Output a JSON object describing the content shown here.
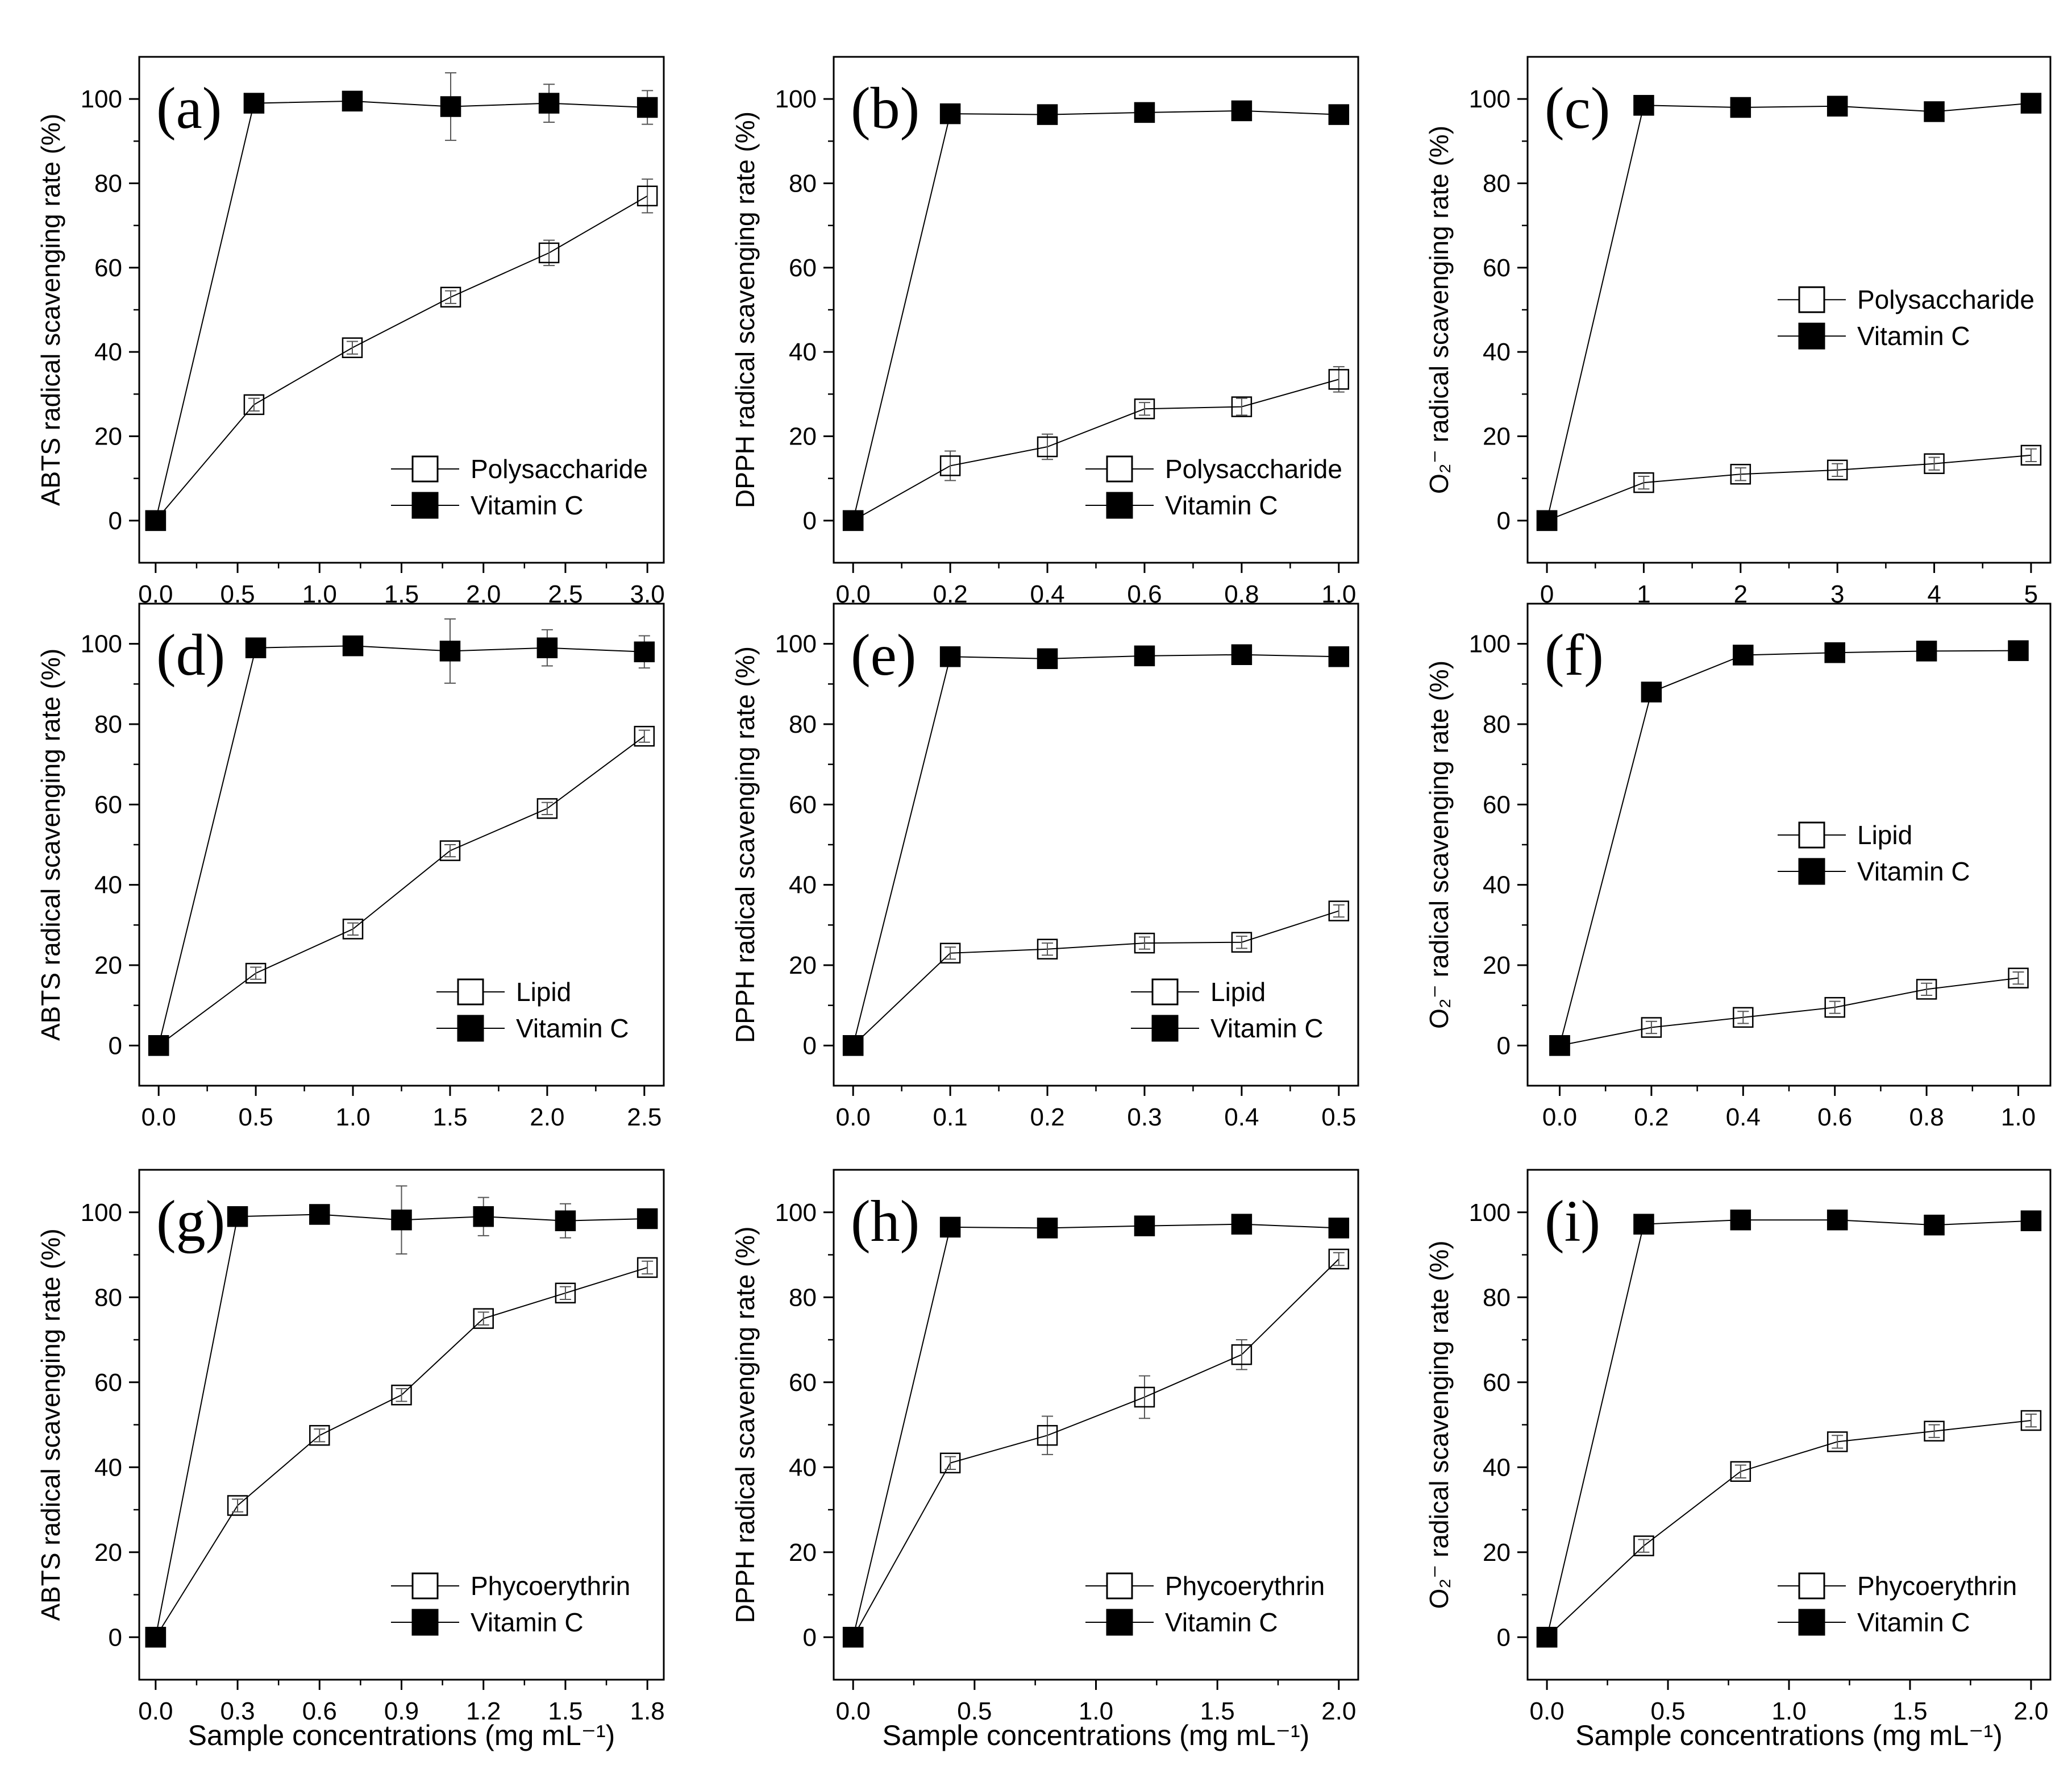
{
  "figure_xlabel": "Sample concentrations (mg mL⁻¹)",
  "chart_data": [
    {
      "id": "a",
      "type": "line",
      "panel_label": "(a)",
      "ylabel": "ABTS radical scavenging rate (%)",
      "xlim": [
        -0.1,
        3.1
      ],
      "ylim": [
        -10,
        110
      ],
      "xticks": [
        0,
        0.5,
        1,
        1.5,
        2,
        2.5,
        3
      ],
      "xtick_labels": [
        "0.0",
        "0.5",
        "1.0",
        "1.5",
        "2.0",
        "2.5",
        "3.0"
      ],
      "yticks": [
        0,
        20,
        40,
        60,
        80,
        100
      ],
      "ytick_labels": [
        "0",
        "20",
        "40",
        "60",
        "80",
        "100"
      ],
      "legend_position": "bottom-right",
      "series": [
        {
          "name": "Polysaccharide",
          "marker": "open-square",
          "x": [
            0,
            0.6,
            1.2,
            1.8,
            2.4,
            3.0
          ],
          "y": [
            0,
            27.5,
            41,
            53,
            63.5,
            77
          ],
          "err": [
            0,
            1.5,
            1.5,
            1.5,
            3,
            4
          ]
        },
        {
          "name": "Vitamin C",
          "marker": "filled-square",
          "x": [
            0,
            0.6,
            1.2,
            1.8,
            2.4,
            3.0
          ],
          "y": [
            0,
            99,
            99.5,
            98.2,
            99,
            98
          ],
          "err": [
            0,
            0.5,
            0.5,
            8,
            4.5,
            4
          ]
        }
      ]
    },
    {
      "id": "b",
      "type": "line",
      "panel_label": "(b)",
      "ylabel": "DPPH radical scavenging rate (%)",
      "xlim": [
        -0.04,
        1.04
      ],
      "ylim": [
        -10,
        110
      ],
      "xticks": [
        0,
        0.2,
        0.4,
        0.6,
        0.8,
        1.0
      ],
      "xtick_labels": [
        "0.0",
        "0.2",
        "0.4",
        "0.6",
        "0.8",
        "1.0"
      ],
      "yticks": [
        0,
        20,
        40,
        60,
        80,
        100
      ],
      "ytick_labels": [
        "0",
        "20",
        "40",
        "60",
        "80",
        "100"
      ],
      "legend_position": "bottom-right",
      "series": [
        {
          "name": "Polysaccharide",
          "marker": "open-square",
          "x": [
            0,
            0.2,
            0.4,
            0.6,
            0.8,
            1.0
          ],
          "y": [
            0,
            13,
            17.5,
            26.5,
            27,
            33.5
          ],
          "err": [
            0,
            3.5,
            3,
            1.5,
            2,
            3
          ]
        },
        {
          "name": "Vitamin C",
          "marker": "filled-square",
          "x": [
            0,
            0.2,
            0.4,
            0.6,
            0.8,
            1.0
          ],
          "y": [
            0,
            96.5,
            96.3,
            96.8,
            97.2,
            96.3
          ],
          "err": [
            0,
            0.5,
            0.5,
            0.5,
            0.5,
            0.5
          ]
        }
      ]
    },
    {
      "id": "c",
      "type": "line",
      "panel_label": "(c)",
      "ylabel": "O₂⁻ radical scavenging rate (%)",
      "xlim": [
        -0.2,
        5.2
      ],
      "ylim": [
        -10,
        110
      ],
      "xticks": [
        0,
        1,
        2,
        3,
        4,
        5
      ],
      "xtick_labels": [
        "0",
        "1",
        "2",
        "3",
        "4",
        "5"
      ],
      "yticks": [
        0,
        20,
        40,
        60,
        80,
        100
      ],
      "ytick_labels": [
        "0",
        "20",
        "40",
        "60",
        "80",
        "100"
      ],
      "legend_position": "center-right",
      "series": [
        {
          "name": "Polysaccharide",
          "marker": "open-square",
          "x": [
            0,
            1,
            2,
            3,
            4,
            5
          ],
          "y": [
            0,
            9,
            11,
            12,
            13.5,
            15.5
          ],
          "err": [
            0,
            1.5,
            1.5,
            1.5,
            1.5,
            1.5
          ]
        },
        {
          "name": "Vitamin C",
          "marker": "filled-square",
          "x": [
            0,
            1,
            2,
            3,
            4,
            5
          ],
          "y": [
            0,
            98.5,
            98,
            98.3,
            97,
            99
          ],
          "err": [
            0,
            0.5,
            0.5,
            0.5,
            2,
            0.5
          ]
        }
      ]
    },
    {
      "id": "d",
      "type": "line",
      "panel_label": "(d)",
      "ylabel": "ABTS radical scavenging rate (%)",
      "xlim": [
        -0.1,
        2.6
      ],
      "ylim": [
        -10,
        110
      ],
      "xticks": [
        0,
        0.5,
        1,
        1.5,
        2,
        2.5
      ],
      "xtick_labels": [
        "0.0",
        "0.5",
        "1.0",
        "1.5",
        "2.0",
        "2.5"
      ],
      "yticks": [
        0,
        20,
        40,
        60,
        80,
        100
      ],
      "ytick_labels": [
        "0",
        "20",
        "40",
        "60",
        "80",
        "100"
      ],
      "legend_position": "bottom-right",
      "series": [
        {
          "name": "Lipid",
          "marker": "open-square",
          "x": [
            0,
            0.5,
            1.0,
            1.5,
            2.0,
            2.5
          ],
          "y": [
            0,
            18,
            29,
            48.5,
            59,
            77
          ],
          "err": [
            0,
            1.5,
            1.5,
            1.5,
            1.5,
            1.5
          ]
        },
        {
          "name": "Vitamin C",
          "marker": "filled-square",
          "x": [
            0,
            0.5,
            1.0,
            1.5,
            2.0,
            2.5
          ],
          "y": [
            0,
            99,
            99.5,
            98.2,
            99,
            98
          ],
          "err": [
            0,
            0.5,
            0.5,
            8,
            4.5,
            4
          ]
        }
      ]
    },
    {
      "id": "e",
      "type": "line",
      "panel_label": "(e)",
      "ylabel": "DPPH radical scavenging rate (%)",
      "xlim": [
        -0.02,
        0.52
      ],
      "ylim": [
        -10,
        110
      ],
      "xticks": [
        0,
        0.1,
        0.2,
        0.3,
        0.4,
        0.5
      ],
      "xtick_labels": [
        "0.0",
        "0.1",
        "0.2",
        "0.3",
        "0.4",
        "0.5"
      ],
      "yticks": [
        0,
        20,
        40,
        60,
        80,
        100
      ],
      "ytick_labels": [
        "0",
        "20",
        "40",
        "60",
        "80",
        "100"
      ],
      "legend_position": "bottom-right",
      "series": [
        {
          "name": "Lipid",
          "marker": "open-square",
          "x": [
            0,
            0.1,
            0.2,
            0.3,
            0.4,
            0.5
          ],
          "y": [
            0,
            23,
            24,
            25.5,
            25.7,
            33.5
          ],
          "err": [
            0,
            1.5,
            1.5,
            1.5,
            1.5,
            1.5
          ]
        },
        {
          "name": "Vitamin C",
          "marker": "filled-square",
          "x": [
            0,
            0.1,
            0.2,
            0.3,
            0.4,
            0.5
          ],
          "y": [
            0,
            96.8,
            96.3,
            97,
            97.3,
            96.8
          ],
          "err": [
            0,
            0.5,
            0.5,
            0.5,
            0.5,
            0.5
          ]
        }
      ]
    },
    {
      "id": "f",
      "type": "line",
      "panel_label": "(f)",
      "ylabel": "O₂⁻ radical scavenging rate (%)",
      "xlim": [
        -0.07,
        1.07
      ],
      "ylim": [
        -10,
        110
      ],
      "xticks": [
        0,
        0.2,
        0.4,
        0.6,
        0.8,
        1.0
      ],
      "xtick_labels": [
        "0.0",
        "0.2",
        "0.4",
        "0.6",
        "0.8",
        "1.0"
      ],
      "yticks": [
        0,
        20,
        40,
        60,
        80,
        100
      ],
      "ytick_labels": [
        "0",
        "20",
        "40",
        "60",
        "80",
        "100"
      ],
      "legend_position": "center-right",
      "series": [
        {
          "name": "Lipid",
          "marker": "open-square",
          "x": [
            0,
            0.2,
            0.4,
            0.6,
            0.8,
            1.0
          ],
          "y": [
            0,
            4.5,
            7,
            9.5,
            14,
            16.8
          ],
          "err": [
            0,
            1.5,
            1.5,
            1.5,
            1.5,
            1.5
          ]
        },
        {
          "name": "Vitamin C",
          "marker": "filled-square",
          "x": [
            0,
            0.2,
            0.4,
            0.6,
            0.8,
            1.0
          ],
          "y": [
            0,
            88,
            97.2,
            97.8,
            98.2,
            98.3
          ],
          "err": [
            0,
            0.5,
            0.5,
            0.5,
            0.5,
            0.5
          ]
        }
      ]
    },
    {
      "id": "g",
      "type": "line",
      "panel_label": "(g)",
      "ylabel": "ABTS radical scavenging rate (%)",
      "xlim": [
        -0.06,
        1.86
      ],
      "ylim": [
        -10,
        110
      ],
      "xticks": [
        0,
        0.3,
        0.6,
        0.9,
        1.2,
        1.5,
        1.8
      ],
      "xtick_labels": [
        "0.0",
        "0.3",
        "0.6",
        "0.9",
        "1.2",
        "1.5",
        "1.8"
      ],
      "yticks": [
        0,
        20,
        40,
        60,
        80,
        100
      ],
      "ytick_labels": [
        "0",
        "20",
        "40",
        "60",
        "80",
        "100"
      ],
      "legend_position": "bottom-right",
      "series": [
        {
          "name": "Phycoerythrin",
          "marker": "open-square",
          "x": [
            0,
            0.3,
            0.6,
            0.9,
            1.2,
            1.5,
            1.8
          ],
          "y": [
            0,
            31,
            47.5,
            57,
            75,
            81,
            87
          ],
          "err": [
            0,
            1.5,
            1.5,
            1.5,
            1.5,
            1.5,
            1.5
          ]
        },
        {
          "name": "Vitamin C",
          "marker": "filled-square",
          "x": [
            0,
            0.3,
            0.6,
            0.9,
            1.2,
            1.5,
            1.8
          ],
          "y": [
            0,
            99,
            99.5,
            98.2,
            99,
            98,
            98.5
          ],
          "err": [
            0,
            0.5,
            0.5,
            8,
            4.5,
            4,
            0.5
          ]
        }
      ]
    },
    {
      "id": "h",
      "type": "line",
      "panel_label": "(h)",
      "ylabel": "DPPH radical scavenging rate (%)",
      "xlim": [
        -0.08,
        2.08
      ],
      "ylim": [
        -10,
        110
      ],
      "xticks": [
        0,
        0.5,
        1.0,
        1.5,
        2.0
      ],
      "xtick_labels": [
        "0.0",
        "0.5",
        "1.0",
        "1.5",
        "2.0"
      ],
      "yticks": [
        0,
        20,
        40,
        60,
        80,
        100
      ],
      "ytick_labels": [
        "0",
        "20",
        "40",
        "60",
        "80",
        "100"
      ],
      "legend_position": "bottom-right",
      "series": [
        {
          "name": "Phycoerythrin",
          "marker": "open-square",
          "x": [
            0,
            0.4,
            0.8,
            1.2,
            1.6,
            2.0
          ],
          "y": [
            0,
            41,
            47.5,
            56.5,
            66.5,
            89
          ],
          "err": [
            0,
            1.5,
            4.5,
            5,
            3.5,
            1.5
          ]
        },
        {
          "name": "Vitamin C",
          "marker": "filled-square",
          "x": [
            0,
            0.4,
            0.8,
            1.2,
            1.6,
            2.0
          ],
          "y": [
            0,
            96.5,
            96.3,
            96.8,
            97.2,
            96.3
          ],
          "err": [
            0,
            0.5,
            0.5,
            0.5,
            0.5,
            0.5
          ]
        }
      ]
    },
    {
      "id": "i",
      "type": "line",
      "panel_label": "(i)",
      "ylabel": "O₂⁻ radical scavenging rate (%)",
      "xlim": [
        -0.08,
        2.08
      ],
      "ylim": [
        -10,
        110
      ],
      "xticks": [
        0,
        0.5,
        1.0,
        1.5,
        2.0
      ],
      "xtick_labels": [
        "0.0",
        "0.5",
        "1.0",
        "1.5",
        "2.0"
      ],
      "yticks": [
        0,
        20,
        40,
        60,
        80,
        100
      ],
      "ytick_labels": [
        "0",
        "20",
        "40",
        "60",
        "80",
        "100"
      ],
      "legend_position": "bottom-right",
      "series": [
        {
          "name": "Phycoerythrin",
          "marker": "open-square",
          "x": [
            0,
            0.4,
            0.8,
            1.2,
            1.6,
            2.0
          ],
          "y": [
            0,
            21.5,
            39,
            46,
            48.5,
            51
          ],
          "err": [
            0,
            1.5,
            1.5,
            1.5,
            1.5,
            1.5
          ]
        },
        {
          "name": "Vitamin C",
          "marker": "filled-square",
          "x": [
            0,
            0.4,
            0.8,
            1.2,
            1.6,
            2.0
          ],
          "y": [
            0,
            97.2,
            98.2,
            98.2,
            97,
            98
          ],
          "err": [
            0,
            0.5,
            0.5,
            0.5,
            1,
            0.5
          ]
        }
      ]
    }
  ]
}
